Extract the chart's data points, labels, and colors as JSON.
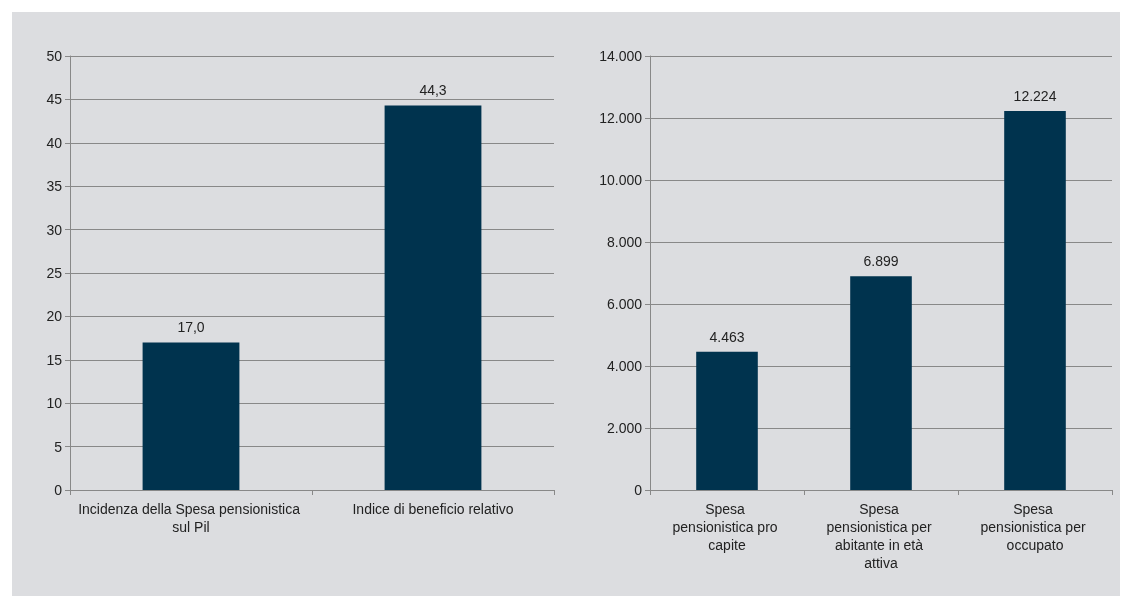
{
  "chart_data": [
    {
      "type": "bar",
      "categories": [
        "Incidenza della Spesa pensionistica sul Pil",
        "Indice di beneficio relativo"
      ],
      "values": [
        17.0,
        44.3
      ],
      "value_labels": [
        "17,0",
        "44,3"
      ],
      "color": "#00334e",
      "ylim": [
        0,
        50
      ],
      "yticks": [
        0,
        5,
        10,
        15,
        20,
        25,
        30,
        35,
        40,
        45,
        50
      ],
      "grid": "y"
    },
    {
      "type": "bar",
      "categories": [
        "Spesa pensionistica pro capite",
        "Spesa pensionistica per abitante in età attiva",
        "Spesa pensionistica per occupato"
      ],
      "values": [
        4463,
        6899,
        12224
      ],
      "value_labels": [
        "4.463",
        "6.899",
        "12.224"
      ],
      "color": "#00334e",
      "ylim": [
        0,
        14000
      ],
      "yticks": [
        0,
        {
          "value": 2000,
          "label": "2.000"
        },
        {
          "value": 4000,
          "label": "4.000"
        },
        {
          "value": 6000,
          "label": "6.000"
        },
        {
          "value": 8000,
          "label": "8.000"
        },
        {
          "value": 10000,
          "label": "10.000"
        },
        {
          "value": 12000,
          "label": "12.000"
        },
        {
          "value": 14000,
          "label": "14.000"
        }
      ],
      "grid": "y"
    }
  ]
}
